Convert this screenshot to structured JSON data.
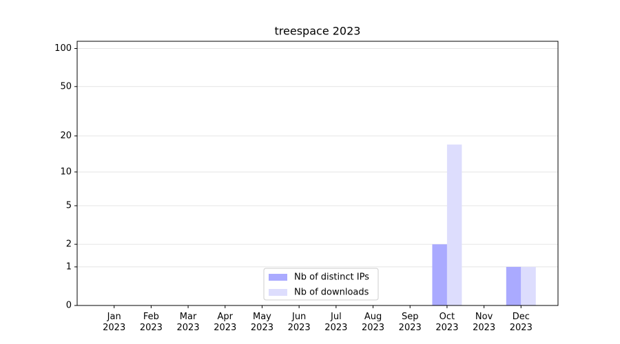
{
  "chart_data": {
    "type": "bar",
    "title": "treespace 2023",
    "categories": [
      "Jan\n2023",
      "Feb\n2023",
      "Mar\n2023",
      "Apr\n2023",
      "May\n2023",
      "Jun\n2023",
      "Jul\n2023",
      "Aug\n2023",
      "Sep\n2023",
      "Oct\n2023",
      "Nov\n2023",
      "Dec\n2023"
    ],
    "series": [
      {
        "name": "Nb of distinct IPs",
        "color": "#aaaaff",
        "values": [
          0,
          0,
          0,
          0,
          0,
          0,
          0,
          0,
          0,
          2,
          0,
          1
        ]
      },
      {
        "name": "Nb of downloads",
        "color": "#ddddfd",
        "values": [
          0,
          0,
          0,
          0,
          0,
          0,
          0,
          0,
          0,
          17,
          0,
          1
        ]
      }
    ],
    "yscale": "log1p",
    "ylim": [
      0,
      114
    ],
    "yticks": [
      0,
      1,
      2,
      5,
      10,
      20,
      50,
      100
    ],
    "grid": true,
    "legend": "lower center"
  }
}
